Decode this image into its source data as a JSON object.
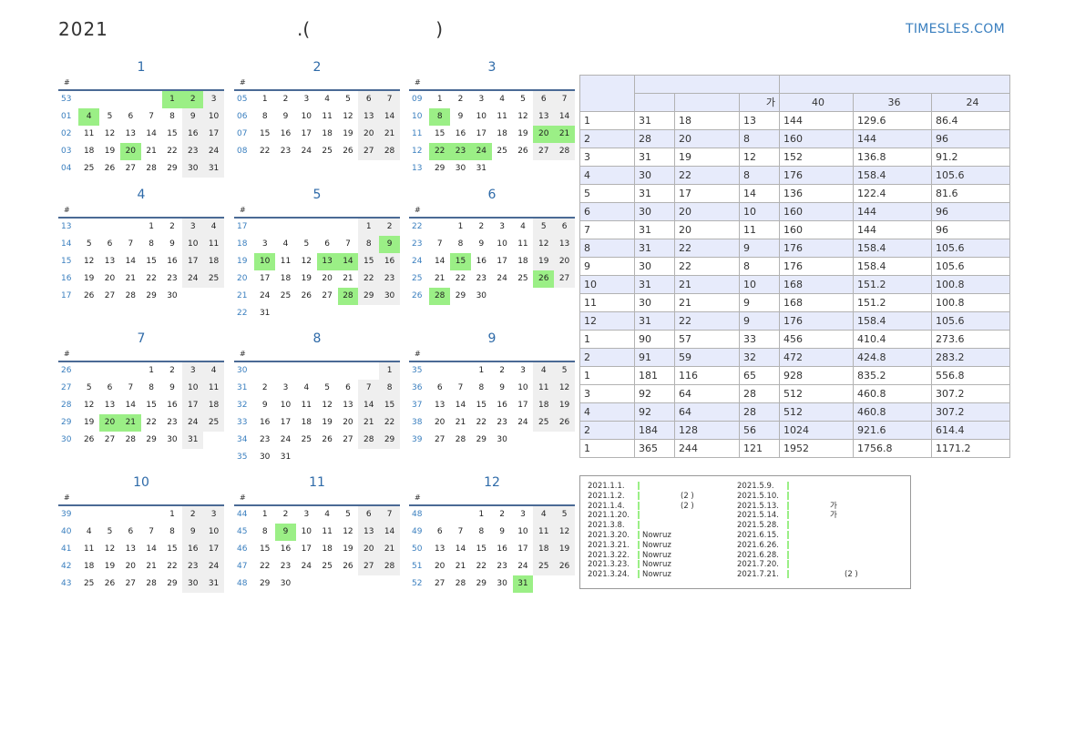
{
  "header": {
    "year": "2021",
    "paren_open": ".(",
    "paren_close": ")",
    "site": "TIMESLES.COM"
  },
  "week_header": "#",
  "months": [
    {
      "title": "1",
      "rows": [
        {
          "wk": "53",
          "days": [
            "",
            "",
            "",
            "",
            "1",
            "2",
            "3"
          ]
        },
        {
          "wk": "01",
          "days": [
            "4",
            "5",
            "6",
            "7",
            "8",
            "9",
            "10"
          ]
        },
        {
          "wk": "02",
          "days": [
            "11",
            "12",
            "13",
            "14",
            "15",
            "16",
            "17"
          ]
        },
        {
          "wk": "03",
          "days": [
            "18",
            "19",
            "20",
            "21",
            "22",
            "23",
            "24"
          ]
        },
        {
          "wk": "04",
          "days": [
            "25",
            "26",
            "27",
            "28",
            "29",
            "30",
            "31"
          ]
        }
      ],
      "holidays": [
        "1",
        "2",
        "4",
        "20"
      ]
    },
    {
      "title": "2",
      "rows": [
        {
          "wk": "05",
          "days": [
            "1",
            "2",
            "3",
            "4",
            "5",
            "6",
            "7"
          ]
        },
        {
          "wk": "06",
          "days": [
            "8",
            "9",
            "10",
            "11",
            "12",
            "13",
            "14"
          ]
        },
        {
          "wk": "07",
          "days": [
            "15",
            "16",
            "17",
            "18",
            "19",
            "20",
            "21"
          ]
        },
        {
          "wk": "08",
          "days": [
            "22",
            "23",
            "24",
            "25",
            "26",
            "27",
            "28"
          ]
        }
      ],
      "holidays": []
    },
    {
      "title": "3",
      "rows": [
        {
          "wk": "09",
          "days": [
            "1",
            "2",
            "3",
            "4",
            "5",
            "6",
            "7"
          ]
        },
        {
          "wk": "10",
          "days": [
            "8",
            "9",
            "10",
            "11",
            "12",
            "13",
            "14"
          ]
        },
        {
          "wk": "11",
          "days": [
            "15",
            "16",
            "17",
            "18",
            "19",
            "20",
            "21"
          ]
        },
        {
          "wk": "12",
          "days": [
            "22",
            "23",
            "24",
            "25",
            "26",
            "27",
            "28"
          ]
        },
        {
          "wk": "13",
          "days": [
            "29",
            "30",
            "31",
            "",
            "",
            "",
            ""
          ]
        }
      ],
      "holidays": [
        "8",
        "20",
        "21",
        "22",
        "23",
        "24"
      ]
    },
    {
      "title": "4",
      "rows": [
        {
          "wk": "13",
          "days": [
            "",
            "",
            "",
            "1",
            "2",
            "3",
            "4"
          ]
        },
        {
          "wk": "14",
          "days": [
            "5",
            "6",
            "7",
            "8",
            "9",
            "10",
            "11"
          ]
        },
        {
          "wk": "15",
          "days": [
            "12",
            "13",
            "14",
            "15",
            "16",
            "17",
            "18"
          ]
        },
        {
          "wk": "16",
          "days": [
            "19",
            "20",
            "21",
            "22",
            "23",
            "24",
            "25"
          ]
        },
        {
          "wk": "17",
          "days": [
            "26",
            "27",
            "28",
            "29",
            "30",
            "",
            ""
          ]
        }
      ],
      "holidays": []
    },
    {
      "title": "5",
      "rows": [
        {
          "wk": "17",
          "days": [
            "",
            "",
            "",
            "",
            "",
            "1",
            "2"
          ]
        },
        {
          "wk": "18",
          "days": [
            "3",
            "4",
            "5",
            "6",
            "7",
            "8",
            "9"
          ]
        },
        {
          "wk": "19",
          "days": [
            "10",
            "11",
            "12",
            "13",
            "14",
            "15",
            "16"
          ]
        },
        {
          "wk": "20",
          "days": [
            "17",
            "18",
            "19",
            "20",
            "21",
            "22",
            "23"
          ]
        },
        {
          "wk": "21",
          "days": [
            "24",
            "25",
            "26",
            "27",
            "28",
            "29",
            "30"
          ]
        },
        {
          "wk": "22",
          "days": [
            "31",
            "",
            "",
            "",
            "",
            "",
            ""
          ]
        }
      ],
      "holidays": [
        "9",
        "10",
        "13",
        "14",
        "28"
      ]
    },
    {
      "title": "6",
      "rows": [
        {
          "wk": "22",
          "days": [
            "",
            "1",
            "2",
            "3",
            "4",
            "5",
            "6"
          ]
        },
        {
          "wk": "23",
          "days": [
            "7",
            "8",
            "9",
            "10",
            "11",
            "12",
            "13"
          ]
        },
        {
          "wk": "24",
          "days": [
            "14",
            "15",
            "16",
            "17",
            "18",
            "19",
            "20"
          ]
        },
        {
          "wk": "25",
          "days": [
            "21",
            "22",
            "23",
            "24",
            "25",
            "26",
            "27"
          ]
        },
        {
          "wk": "26",
          "days": [
            "28",
            "29",
            "30",
            "",
            "",
            "",
            ""
          ]
        }
      ],
      "holidays": [
        "15",
        "26",
        "28"
      ]
    },
    {
      "title": "7",
      "rows": [
        {
          "wk": "26",
          "days": [
            "",
            "",
            "",
            "1",
            "2",
            "3",
            "4"
          ]
        },
        {
          "wk": "27",
          "days": [
            "5",
            "6",
            "7",
            "8",
            "9",
            "10",
            "11"
          ]
        },
        {
          "wk": "28",
          "days": [
            "12",
            "13",
            "14",
            "15",
            "16",
            "17",
            "18"
          ]
        },
        {
          "wk": "29",
          "days": [
            "19",
            "20",
            "21",
            "22",
            "23",
            "24",
            "25"
          ]
        },
        {
          "wk": "30",
          "days": [
            "26",
            "27",
            "28",
            "29",
            "30",
            "31",
            ""
          ]
        }
      ],
      "holidays": [
        "20",
        "21"
      ]
    },
    {
      "title": "8",
      "rows": [
        {
          "wk": "30",
          "days": [
            "",
            "",
            "",
            "",
            "",
            "",
            "1"
          ]
        },
        {
          "wk": "31",
          "days": [
            "2",
            "3",
            "4",
            "5",
            "6",
            "7",
            "8"
          ]
        },
        {
          "wk": "32",
          "days": [
            "9",
            "10",
            "11",
            "12",
            "13",
            "14",
            "15"
          ]
        },
        {
          "wk": "33",
          "days": [
            "16",
            "17",
            "18",
            "19",
            "20",
            "21",
            "22"
          ]
        },
        {
          "wk": "34",
          "days": [
            "23",
            "24",
            "25",
            "26",
            "27",
            "28",
            "29"
          ]
        },
        {
          "wk": "35",
          "days": [
            "30",
            "31",
            "",
            "",
            "",
            "",
            ""
          ]
        }
      ],
      "holidays": []
    },
    {
      "title": "9",
      "rows": [
        {
          "wk": "35",
          "days": [
            "",
            "",
            "1",
            "2",
            "3",
            "4",
            "5"
          ]
        },
        {
          "wk": "36",
          "days": [
            "6",
            "7",
            "8",
            "9",
            "10",
            "11",
            "12"
          ]
        },
        {
          "wk": "37",
          "days": [
            "13",
            "14",
            "15",
            "16",
            "17",
            "18",
            "19"
          ]
        },
        {
          "wk": "38",
          "days": [
            "20",
            "21",
            "22",
            "23",
            "24",
            "25",
            "26"
          ]
        },
        {
          "wk": "39",
          "days": [
            "27",
            "28",
            "29",
            "30",
            "",
            "",
            ""
          ]
        }
      ],
      "holidays": []
    },
    {
      "title": "10",
      "rows": [
        {
          "wk": "39",
          "days": [
            "",
            "",
            "",
            "",
            "1",
            "2",
            "3"
          ]
        },
        {
          "wk": "40",
          "days": [
            "4",
            "5",
            "6",
            "7",
            "8",
            "9",
            "10"
          ]
        },
        {
          "wk": "41",
          "days": [
            "11",
            "12",
            "13",
            "14",
            "15",
            "16",
            "17"
          ]
        },
        {
          "wk": "42",
          "days": [
            "18",
            "19",
            "20",
            "21",
            "22",
            "23",
            "24"
          ]
        },
        {
          "wk": "43",
          "days": [
            "25",
            "26",
            "27",
            "28",
            "29",
            "30",
            "31"
          ]
        }
      ],
      "holidays": []
    },
    {
      "title": "11",
      "rows": [
        {
          "wk": "44",
          "days": [
            "1",
            "2",
            "3",
            "4",
            "5",
            "6",
            "7"
          ]
        },
        {
          "wk": "45",
          "days": [
            "8",
            "9",
            "10",
            "11",
            "12",
            "13",
            "14"
          ]
        },
        {
          "wk": "46",
          "days": [
            "15",
            "16",
            "17",
            "18",
            "19",
            "20",
            "21"
          ]
        },
        {
          "wk": "47",
          "days": [
            "22",
            "23",
            "24",
            "25",
            "26",
            "27",
            "28"
          ]
        },
        {
          "wk": "48",
          "days": [
            "29",
            "30",
            "",
            "",
            "",
            "",
            ""
          ]
        }
      ],
      "holidays": [
        "9"
      ]
    },
    {
      "title": "12",
      "rows": [
        {
          "wk": "48",
          "days": [
            "",
            "",
            "1",
            "2",
            "3",
            "4",
            "5"
          ]
        },
        {
          "wk": "49",
          "days": [
            "6",
            "7",
            "8",
            "9",
            "10",
            "11",
            "12"
          ]
        },
        {
          "wk": "50",
          "days": [
            "13",
            "14",
            "15",
            "16",
            "17",
            "18",
            "19"
          ]
        },
        {
          "wk": "51",
          "days": [
            "20",
            "21",
            "22",
            "23",
            "24",
            "25",
            "26"
          ]
        },
        {
          "wk": "52",
          "days": [
            "27",
            "28",
            "29",
            "30",
            "31",
            "",
            ""
          ]
        }
      ],
      "holidays": [
        "31"
      ]
    }
  ],
  "stats": {
    "header_row2": [
      "",
      "",
      "",
      "가",
      "40",
      "36",
      "24"
    ],
    "rows": [
      [
        "1",
        "31",
        "18",
        "13",
        "144",
        "129.6",
        "86.4"
      ],
      [
        "2",
        "28",
        "20",
        "8",
        "160",
        "144",
        "96"
      ],
      [
        "3",
        "31",
        "19",
        "12",
        "152",
        "136.8",
        "91.2"
      ],
      [
        "4",
        "30",
        "22",
        "8",
        "176",
        "158.4",
        "105.6"
      ],
      [
        "5",
        "31",
        "17",
        "14",
        "136",
        "122.4",
        "81.6"
      ],
      [
        "6",
        "30",
        "20",
        "10",
        "160",
        "144",
        "96"
      ],
      [
        "7",
        "31",
        "20",
        "11",
        "160",
        "144",
        "96"
      ],
      [
        "8",
        "31",
        "22",
        "9",
        "176",
        "158.4",
        "105.6"
      ],
      [
        "9",
        "30",
        "22",
        "8",
        "176",
        "158.4",
        "105.6"
      ],
      [
        "10",
        "31",
        "21",
        "10",
        "168",
        "151.2",
        "100.8"
      ],
      [
        "11",
        "30",
        "21",
        "9",
        "168",
        "151.2",
        "100.8"
      ],
      [
        "12",
        "31",
        "22",
        "9",
        "176",
        "158.4",
        "105.6"
      ],
      [
        "1",
        "90",
        "57",
        "33",
        "456",
        "410.4",
        "273.6"
      ],
      [
        "2",
        "91",
        "59",
        "32",
        "472",
        "424.8",
        "283.2"
      ],
      [
        "1",
        "181",
        "116",
        "65",
        "928",
        "835.2",
        "556.8"
      ],
      [
        "3",
        "92",
        "64",
        "28",
        "512",
        "460.8",
        "307.2"
      ],
      [
        "4",
        "92",
        "64",
        "28",
        "512",
        "460.8",
        "307.2"
      ],
      [
        "2",
        "184",
        "128",
        "56",
        "1024",
        "921.6",
        "614.4"
      ],
      [
        "1",
        "365",
        "244",
        "121",
        "1952",
        "1756.8",
        "1171.2"
      ]
    ]
  },
  "holiday_list": {
    "left": [
      {
        "date": "2021.1.1.",
        "name": ""
      },
      {
        "date": "2021.1.2.",
        "name": "(2      )"
      },
      {
        "date": "2021.1.4.",
        "name": "(2      )"
      },
      {
        "date": "2021.1.20.",
        "name": ""
      },
      {
        "date": "2021.3.8.",
        "name": ""
      },
      {
        "date": "2021.3.20.",
        "name": "Nowruz"
      },
      {
        "date": "2021.3.21.",
        "name": "Nowruz"
      },
      {
        "date": "2021.3.22.",
        "name": "Nowruz"
      },
      {
        "date": "2021.3.23.",
        "name": "Nowruz"
      },
      {
        "date": "2021.3.24.",
        "name": "Nowruz"
      }
    ],
    "right": [
      {
        "date": "2021.5.9.",
        "name": ""
      },
      {
        "date": "2021.5.10.",
        "name": ""
      },
      {
        "date": "2021.5.13.",
        "name": "가"
      },
      {
        "date": "2021.5.14.",
        "name": "가"
      },
      {
        "date": "2021.5.28.",
        "name": ""
      },
      {
        "date": "2021.6.15.",
        "name": ""
      },
      {
        "date": "2021.6.26.",
        "name": ""
      },
      {
        "date": "2021.6.28.",
        "name": ""
      },
      {
        "date": "2021.7.20.",
        "name": ""
      },
      {
        "date": "2021.7.21.",
        "name": "(2      )"
      }
    ]
  },
  "colors": {
    "holiday": "#9bef86",
    "weekend": "#efefef",
    "accent": "#3a7fbf",
    "header_bg": "#e7ebfb"
  }
}
